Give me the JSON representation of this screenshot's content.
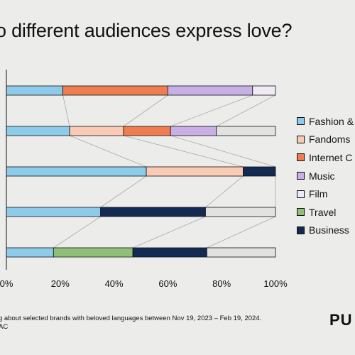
{
  "title": "o different audiences express love?",
  "footnote": {
    "line1": "g about selected brands with beloved languages between Nov 19, 2023 – Feb 19, 2024.",
    "line2": "AC"
  },
  "logo": "PU",
  "chart_data": {
    "type": "bar",
    "orientation": "horizontal",
    "stacked": true,
    "percent_stacked": true,
    "xlim": [
      0,
      100
    ],
    "ticks": [
      0,
      20,
      40,
      60,
      80,
      100
    ],
    "tick_labels": [
      "0%",
      "20%",
      "40%",
      "60%",
      "80%",
      "100%"
    ],
    "legend_position": "right",
    "rows": 5,
    "series": [
      {
        "name": "Fashion &",
        "color": "#8ecbea",
        "values": [
          21,
          23.5,
          52,
          35,
          17.5
        ]
      },
      {
        "name": "Fandoms",
        "color": "#f9cbb5",
        "values": [
          0,
          20,
          36,
          0,
          0
        ]
      },
      {
        "name": "Internet C",
        "color": "#ef7d4f",
        "values": [
          39,
          17.5,
          0,
          0,
          0
        ]
      },
      {
        "name": "Music",
        "color": "#c8b0e6",
        "values": [
          31.5,
          17,
          0,
          0,
          0
        ]
      },
      {
        "name": "Film",
        "color": "#f0eaf7",
        "values": [
          8.5,
          0,
          0,
          0,
          0
        ]
      },
      {
        "name": "Travel",
        "color": "#8fbf78",
        "values": [
          0,
          0,
          0,
          0,
          29.5
        ]
      },
      {
        "name": "Business",
        "color": "#132a52",
        "values": [
          0,
          0,
          12,
          39,
          27.5
        ]
      },
      {
        "name": "",
        "color": "#e2e2e0",
        "values": [
          0,
          22,
          0,
          26,
          25.5
        ]
      }
    ]
  }
}
